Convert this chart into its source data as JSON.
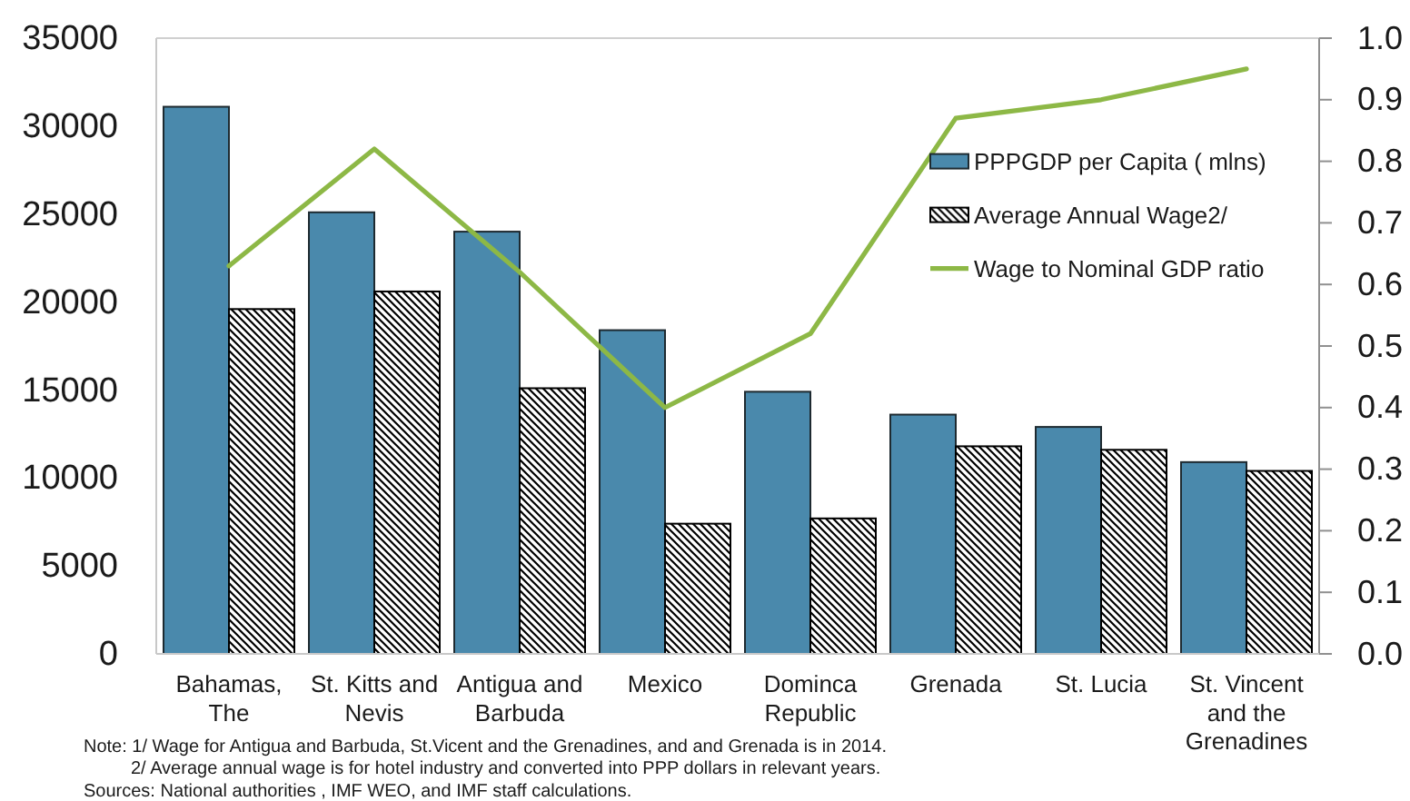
{
  "chart_data": {
    "type": "bar",
    "categories": [
      "Bahamas, The",
      "St. Kitts and Nevis",
      "Antigua and Barbuda",
      "Mexico",
      "Dominca Republic",
      "Grenada",
      "St. Lucia",
      "St. Vincent and the Grenadines"
    ],
    "series": [
      {
        "name": "PPPGDP per Capita ( mlns)",
        "color": "#4a89ac",
        "values": [
          31100,
          25100,
          24000,
          18400,
          14900,
          13600,
          12900,
          10900
        ]
      },
      {
        "name": "Average Annual Wage2/",
        "color": "#000000",
        "values": [
          19600,
          20600,
          15100,
          7400,
          7700,
          11800,
          11600,
          10400
        ]
      },
      {
        "name": "Wage to Nominal GDP ratio",
        "type": "line",
        "axis": "y2",
        "color": "#8db846",
        "values": [
          0.63,
          0.82,
          0.62,
          0.4,
          0.52,
          0.87,
          0.9,
          0.95
        ]
      }
    ],
    "ylim": [
      0,
      35000
    ],
    "yticks": [
      0,
      5000,
      10000,
      15000,
      20000,
      25000,
      30000,
      35000
    ],
    "y2lim": [
      0,
      1
    ],
    "y2ticks": [
      {
        "value": 0,
        "label": "0.0"
      },
      0.1,
      0.2,
      0.3,
      0.4,
      0.5,
      0.6,
      0.7,
      0.8,
      0.9,
      {
        "value": 1,
        "label": "1.0"
      }
    ],
    "legend": "right",
    "annotations": [
      "Note: 1/ Wage for Antigua and Barbuda, St.Vicent and the Grenadines, and and Grenada is in 2014.",
      "2/ Average annual wage is for hotel industry and converted into PPP dollars in relevant years.",
      "Sources: National authorities , IMF WEO, and IMF staff calculations."
    ]
  }
}
